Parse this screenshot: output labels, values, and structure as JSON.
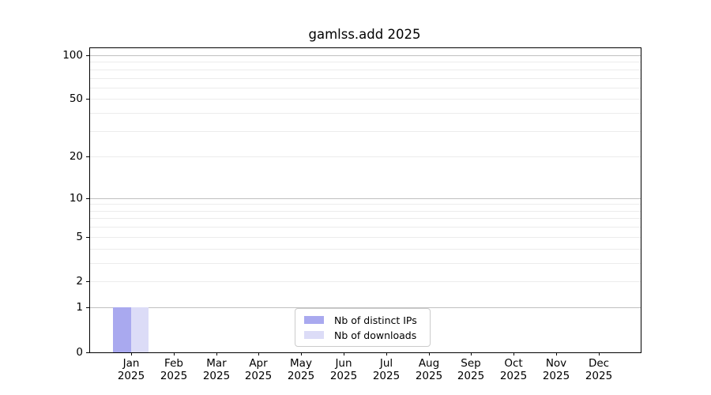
{
  "chart_data": {
    "type": "bar",
    "title": "gamlss.add 2025",
    "x": {
      "months": [
        "Jan",
        "Feb",
        "Mar",
        "Apr",
        "May",
        "Jun",
        "Jul",
        "Aug",
        "Sep",
        "Oct",
        "Nov",
        "Dec"
      ],
      "year": "2025"
    },
    "series": [
      {
        "name": "Nb of distinct IPs",
        "color": "#a9a9ef",
        "values": [
          1,
          0,
          0,
          0,
          0,
          0,
          0,
          0,
          0,
          0,
          0,
          0
        ]
      },
      {
        "name": "Nb of downloads",
        "color": "#dcdcf7",
        "values": [
          1,
          0,
          0,
          0,
          0,
          0,
          0,
          0,
          0,
          0,
          0,
          0
        ]
      }
    ],
    "y_axis": {
      "scale": "log10(value+1)",
      "tick_values": [
        100,
        50,
        20,
        10,
        5,
        2,
        1,
        0
      ],
      "tick_labels": [
        "100",
        "50",
        "20",
        "10",
        "5",
        "2",
        "1",
        "0"
      ],
      "major_grid_values": [
        1,
        10,
        100
      ],
      "minor_grid_values": [
        2,
        3,
        4,
        5,
        6,
        7,
        8,
        9,
        20,
        30,
        40,
        50,
        60,
        70,
        80,
        90
      ],
      "ylim": [
        0,
        113
      ]
    },
    "legend": {
      "position": "lower center",
      "entries": [
        "Nb of distinct IPs",
        "Nb of downloads"
      ]
    },
    "grid": "horizontal only"
  }
}
